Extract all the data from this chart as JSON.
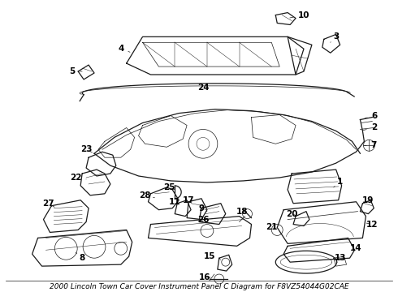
{
  "title": "2000 Lincoln Town Car Cover Instrument Panel C Diagram for F8VZ54044G02CAE",
  "background_color": "#ffffff",
  "line_color": "#1a1a1a",
  "label_color": "#000000",
  "fig_width": 4.9,
  "fig_height": 3.6,
  "dpi": 100,
  "label_fontsize": 7.5,
  "title_fontsize": 6.5,
  "lw_main": 0.9,
  "lw_thin": 0.5,
  "lw_detail": 0.35
}
